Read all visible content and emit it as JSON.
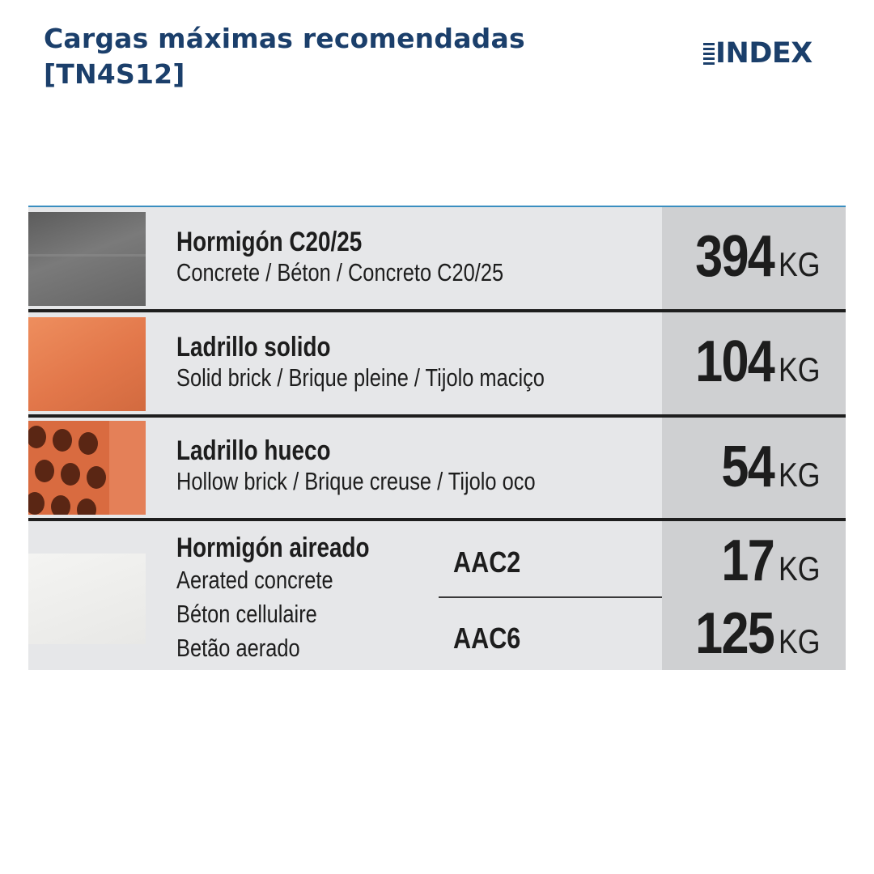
{
  "header": {
    "title_line1": "Cargas máximas recomendadas",
    "title_line2": "[TN4S12]",
    "logo_text": "INDEX"
  },
  "rows": [
    {
      "name": "Hormigón  C20/25",
      "translations": "Concrete / Béton / Concreto C20/25",
      "value": "394",
      "unit": "KG",
      "swatch_color": "#6f6f6f"
    },
    {
      "name": "Ladrillo solido",
      "translations": "Solid brick / Brique pleine / Tijolo maciço",
      "value": "104",
      "unit": "KG",
      "swatch_color": "#e07a4c"
    },
    {
      "name": "Ladrillo hueco",
      "translations": "Hollow brick / Brique creuse / Tijolo oco",
      "value": "54",
      "unit": "KG",
      "swatch_color": "#d8673d"
    },
    {
      "name": "Hormigón aireado",
      "translations": [
        "Aerated concrete",
        "Béton cellulaire",
        "Betão aerado"
      ],
      "swatch_color": "#eeeeec",
      "variants": [
        {
          "code": "AAC2",
          "value": "17",
          "unit": "KG"
        },
        {
          "code": "AAC6",
          "value": "125",
          "unit": "KG"
        }
      ]
    }
  ],
  "colors": {
    "title": "#1b3f6b",
    "table_bg": "#e6e7e9",
    "value_bg": "#cfd0d2",
    "separator": "#1e1e1e"
  }
}
